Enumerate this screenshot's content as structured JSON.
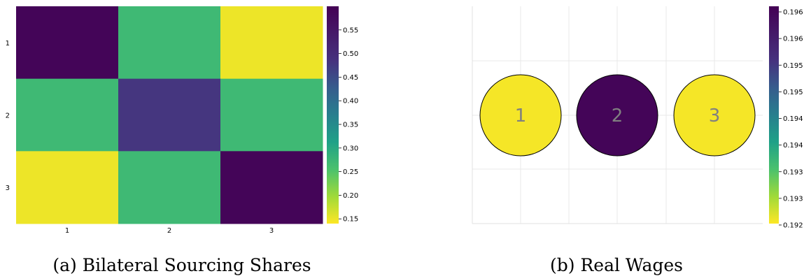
{
  "chart_data": [
    {
      "type": "heatmap",
      "caption": "(a) Bilateral Sourcing Shares",
      "x_tick_labels": [
        "1",
        "2",
        "3"
      ],
      "y_tick_labels": [
        "1",
        "2",
        "3"
      ],
      "values": [
        [
          0.59,
          0.27,
          0.15
        ],
        [
          0.27,
          0.48,
          0.27
        ],
        [
          0.15,
          0.27,
          0.59
        ]
      ],
      "colorbar": {
        "range": [
          0.14,
          0.6
        ],
        "ticks": [
          0.55,
          0.5,
          0.45,
          0.4,
          0.35,
          0.3,
          0.25,
          0.2,
          0.15
        ],
        "tick_labels": [
          "0.55",
          "0.50",
          "0.45",
          "0.40",
          "0.35",
          "0.30",
          "0.25",
          "0.20",
          "0.15"
        ],
        "colormap": "viridis-reversed"
      }
    },
    {
      "type": "scatter",
      "caption": "(b) Real Wages",
      "nodes": [
        {
          "label": "1",
          "value": 0.19205
        },
        {
          "label": "2",
          "value": 0.1963
        },
        {
          "label": "3",
          "value": 0.19205
        }
      ],
      "grid": true,
      "colorbar": {
        "range": [
          0.192,
          0.1964
        ],
        "tick_labels": [
          "0.196",
          "0.196",
          "0.195",
          "0.195",
          "0.194",
          "0.194",
          "0.193",
          "0.193",
          "0.192"
        ],
        "colormap": "viridis-reversed"
      }
    }
  ]
}
